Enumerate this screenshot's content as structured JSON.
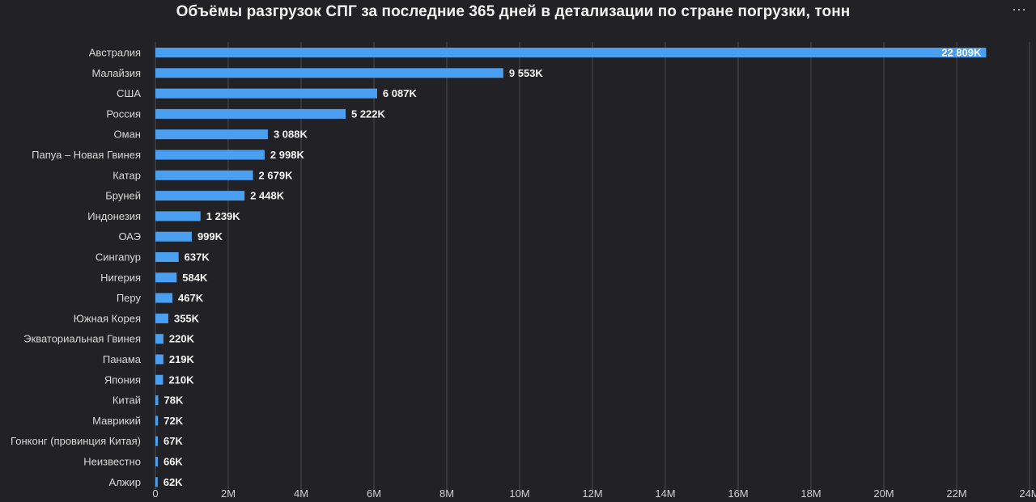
{
  "header": {
    "title": "Объёмы разгрузок СПГ за последние 365 дней в детализации по стране погрузки, тонн",
    "menu_icon": "more-horizontal-icon",
    "menu_glyph": "···"
  },
  "colors": {
    "background": "#222226",
    "bar": "#4a9ff0",
    "grid": "#4a4a50"
  },
  "chart_data": {
    "type": "bar",
    "orientation": "horizontal",
    "title": "Объёмы разгрузок СПГ за последние 365 дней в детализации по стране погрузки, тонн",
    "xlabel": "",
    "ylabel": "",
    "xlim": [
      0,
      24000000
    ],
    "grid": true,
    "legend": "none",
    "x_ticks": [
      0,
      2000000,
      4000000,
      6000000,
      8000000,
      10000000,
      12000000,
      14000000,
      16000000,
      18000000,
      20000000,
      22000000,
      24000000
    ],
    "x_tick_labels": [
      "0",
      "2M",
      "4M",
      "6M",
      "8M",
      "10M",
      "12M",
      "14M",
      "16M",
      "18M",
      "20M",
      "22M",
      "24M"
    ],
    "categories": [
      "Австралия",
      "Малайзия",
      "США",
      "Россия",
      "Оман",
      "Папуа – Новая Гвинея",
      "Катар",
      "Бруней",
      "Индонезия",
      "ОАЭ",
      "Сингапур",
      "Нигерия",
      "Перу",
      "Южная Корея",
      "Экваториальная Гвинея",
      "Панама",
      "Япония",
      "Китай",
      "Маврикий",
      "Гонконг (провинция Китая)",
      "Неизвестно",
      "Алжир"
    ],
    "values": [
      22809000,
      9553000,
      6087000,
      5222000,
      3088000,
      2998000,
      2679000,
      2448000,
      1239000,
      999000,
      637000,
      584000,
      467000,
      355000,
      220000,
      219000,
      210000,
      78000,
      72000,
      67000,
      66000,
      62000
    ],
    "data_labels": [
      "22 809K",
      "9 553K",
      "6 087K",
      "5 222K",
      "3 088K",
      "2 998K",
      "2 679K",
      "2 448K",
      "1 239K",
      "999K",
      "637K",
      "584K",
      "467K",
      "355K",
      "220K",
      "219K",
      "210K",
      "78K",
      "72K",
      "67K",
      "66K",
      "62K"
    ]
  }
}
